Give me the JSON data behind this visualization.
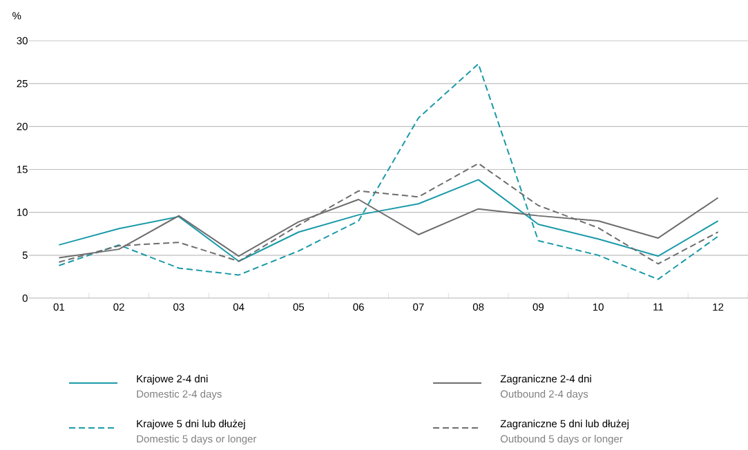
{
  "chart_data": {
    "type": "line",
    "ylabel": "%",
    "categories": [
      "01",
      "02",
      "03",
      "04",
      "05",
      "06",
      "07",
      "08",
      "09",
      "10",
      "11",
      "12"
    ],
    "ylim": [
      0,
      30
    ],
    "yticks": [
      0,
      5,
      10,
      15,
      20,
      25,
      30
    ],
    "grid": "y",
    "legend": "bottom",
    "marker": "none",
    "series": [
      {
        "name": "Krajowe 2-4 dni",
        "color": "#1a9aa8",
        "line_style": "solid",
        "values": [
          6.2,
          8.1,
          9.5,
          4.3,
          7.7,
          9.7,
          11.0,
          13.8,
          8.6,
          6.9,
          4.9,
          9.0
        ]
      },
      {
        "name": "Krajowe 5 dni lub dłużej",
        "color": "#1a9aa8",
        "line_style": "dashed",
        "values": [
          3.8,
          6.2,
          3.5,
          2.7,
          5.5,
          9.0,
          21.0,
          27.3,
          6.7,
          5.0,
          2.2,
          7.2
        ]
      },
      {
        "name": "Zagraniczne 2-4 dni",
        "color": "#6d6d6d",
        "line_style": "solid",
        "values": [
          4.7,
          5.7,
          9.6,
          4.9,
          8.9,
          11.5,
          7.4,
          10.4,
          9.6,
          9.0,
          7.0,
          11.7
        ]
      },
      {
        "name": "Zagraniczne 5 dni lub dłużej",
        "color": "#6d6d6d",
        "line_style": "dashed",
        "values": [
          4.2,
          6.1,
          6.5,
          4.3,
          8.5,
          12.5,
          11.8,
          15.7,
          10.8,
          8.2,
          4.0,
          7.7
        ]
      }
    ],
    "annotations": [
      "Domestic 2-4 days",
      "Domestic 5 days or longer",
      "Outbound 2-4 days",
      "Outbound 5 days or longer"
    ]
  }
}
